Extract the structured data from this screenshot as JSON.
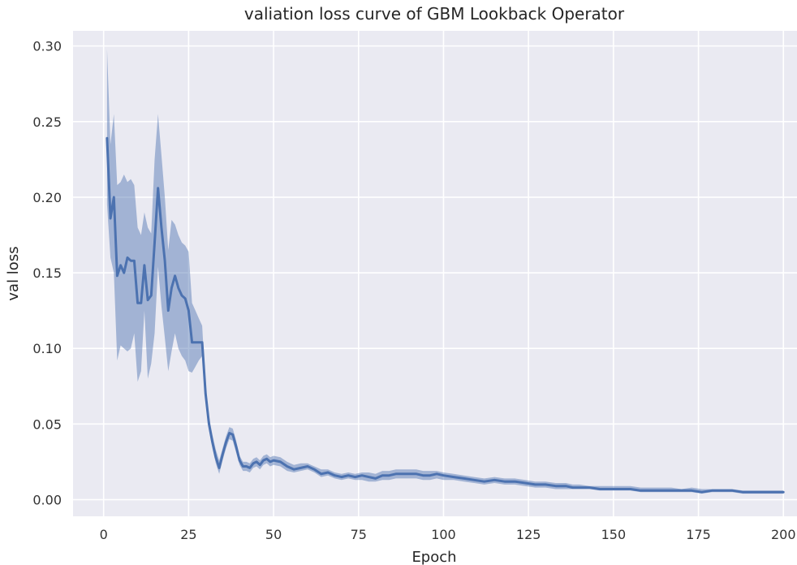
{
  "chart_data": {
    "type": "line",
    "title": "valiation loss curve of GBM Lookback Operator",
    "xlabel": "Epoch",
    "ylabel": "val loss",
    "xlim": [
      -9,
      204
    ],
    "ylim": [
      -0.011,
      0.31
    ],
    "xticks": [
      0,
      25,
      50,
      75,
      100,
      125,
      150,
      175,
      200
    ],
    "xtick_labels": [
      "0",
      "25",
      "50",
      "75",
      "100",
      "125",
      "150",
      "175",
      "200"
    ],
    "yticks": [
      0.0,
      0.05,
      0.1,
      0.15,
      0.2,
      0.25,
      0.3
    ],
    "ytick_labels": [
      "0.00",
      "0.05",
      "0.10",
      "0.15",
      "0.20",
      "0.25",
      "0.30"
    ],
    "grid": true,
    "style": "seaborn-darkgrid",
    "colors": {
      "background": "#EAEAF2",
      "grid": "#FFFFFF",
      "line": "#4C72B0",
      "band": "#4C72B0"
    },
    "series": [
      {
        "x": [
          1,
          2,
          3,
          4,
          5,
          6,
          7,
          8,
          9,
          10,
          11,
          12,
          13,
          14,
          15,
          16,
          17,
          18,
          19,
          20,
          21,
          22,
          23,
          24,
          25,
          26,
          27,
          28,
          29,
          30,
          31,
          32,
          33,
          34,
          35,
          36,
          37,
          38,
          39,
          40,
          41,
          42,
          43,
          44,
          45,
          46,
          47,
          48,
          49,
          50,
          52,
          54,
          56,
          58,
          60,
          62,
          64,
          66,
          68,
          70,
          72,
          74,
          76,
          78,
          80,
          82,
          84,
          86,
          88,
          90,
          92,
          94,
          96,
          98,
          100,
          103,
          106,
          109,
          112,
          115,
          118,
          121,
          124,
          127,
          130,
          133,
          136,
          138,
          140,
          143,
          146,
          149,
          152,
          155,
          158,
          161,
          164,
          167,
          170,
          173,
          176,
          179,
          182,
          185,
          188,
          191,
          194,
          197,
          200
        ],
        "y": [
          0.239,
          0.186,
          0.2,
          0.148,
          0.155,
          0.15,
          0.16,
          0.158,
          0.158,
          0.13,
          0.13,
          0.155,
          0.132,
          0.135,
          0.17,
          0.206,
          0.18,
          0.158,
          0.125,
          0.14,
          0.148,
          0.14,
          0.135,
          0.133,
          0.125,
          0.104,
          0.104,
          0.104,
          0.104,
          0.07,
          0.05,
          0.038,
          0.028,
          0.021,
          0.03,
          0.038,
          0.044,
          0.043,
          0.035,
          0.026,
          0.022,
          0.022,
          0.021,
          0.024,
          0.025,
          0.023,
          0.026,
          0.027,
          0.025,
          0.026,
          0.025,
          0.022,
          0.02,
          0.021,
          0.022,
          0.02,
          0.017,
          0.018,
          0.016,
          0.015,
          0.016,
          0.015,
          0.016,
          0.015,
          0.014,
          0.016,
          0.016,
          0.017,
          0.017,
          0.017,
          0.017,
          0.016,
          0.016,
          0.017,
          0.016,
          0.015,
          0.014,
          0.013,
          0.012,
          0.013,
          0.012,
          0.012,
          0.011,
          0.01,
          0.01,
          0.009,
          0.009,
          0.008,
          0.008,
          0.008,
          0.007,
          0.007,
          0.007,
          0.007,
          0.006,
          0.006,
          0.006,
          0.006,
          0.006,
          0.006,
          0.005,
          0.006,
          0.006,
          0.006,
          0.005,
          0.005,
          0.005,
          0.005,
          0.005
        ],
        "y_lower": [
          0.195,
          0.16,
          0.15,
          0.092,
          0.102,
          0.1,
          0.098,
          0.1,
          0.11,
          0.078,
          0.085,
          0.125,
          0.08,
          0.09,
          0.11,
          0.154,
          0.128,
          0.107,
          0.085,
          0.098,
          0.11,
          0.1,
          0.095,
          0.092,
          0.085,
          0.084,
          0.088,
          0.092,
          0.095,
          0.066,
          0.046,
          0.034,
          0.024,
          0.017,
          0.026,
          0.034,
          0.04,
          0.039,
          0.031,
          0.023,
          0.019,
          0.019,
          0.018,
          0.021,
          0.022,
          0.02,
          0.023,
          0.024,
          0.022,
          0.023,
          0.022,
          0.019,
          0.018,
          0.019,
          0.02,
          0.018,
          0.015,
          0.016,
          0.014,
          0.013,
          0.014,
          0.013,
          0.013,
          0.012,
          0.012,
          0.013,
          0.013,
          0.014,
          0.014,
          0.014,
          0.014,
          0.013,
          0.013,
          0.014,
          0.013,
          0.013,
          0.012,
          0.011,
          0.01,
          0.011,
          0.01,
          0.01,
          0.009,
          0.008,
          0.008,
          0.007,
          0.007,
          0.007,
          0.007,
          0.007,
          0.006,
          0.006,
          0.006,
          0.006,
          0.005,
          0.005,
          0.005,
          0.005,
          0.005,
          0.005,
          0.004,
          0.005,
          0.005,
          0.005,
          0.004,
          0.004,
          0.004,
          0.004,
          0.004
        ],
        "y_upper": [
          0.298,
          0.235,
          0.255,
          0.208,
          0.21,
          0.215,
          0.21,
          0.212,
          0.208,
          0.18,
          0.175,
          0.19,
          0.18,
          0.176,
          0.225,
          0.255,
          0.228,
          0.2,
          0.165,
          0.185,
          0.182,
          0.175,
          0.17,
          0.168,
          0.164,
          0.13,
          0.125,
          0.12,
          0.115,
          0.075,
          0.055,
          0.043,
          0.033,
          0.026,
          0.034,
          0.042,
          0.048,
          0.047,
          0.039,
          0.029,
          0.025,
          0.025,
          0.024,
          0.027,
          0.028,
          0.026,
          0.029,
          0.03,
          0.028,
          0.029,
          0.028,
          0.025,
          0.023,
          0.024,
          0.024,
          0.022,
          0.02,
          0.02,
          0.018,
          0.017,
          0.018,
          0.017,
          0.018,
          0.018,
          0.017,
          0.019,
          0.019,
          0.02,
          0.02,
          0.02,
          0.02,
          0.019,
          0.019,
          0.019,
          0.018,
          0.017,
          0.016,
          0.015,
          0.014,
          0.015,
          0.014,
          0.014,
          0.013,
          0.012,
          0.012,
          0.011,
          0.011,
          0.01,
          0.01,
          0.009,
          0.009,
          0.009,
          0.009,
          0.009,
          0.008,
          0.008,
          0.008,
          0.008,
          0.007,
          0.008,
          0.007,
          0.007,
          0.007,
          0.007,
          0.006,
          0.006,
          0.006,
          0.006,
          0.006
        ]
      }
    ]
  }
}
